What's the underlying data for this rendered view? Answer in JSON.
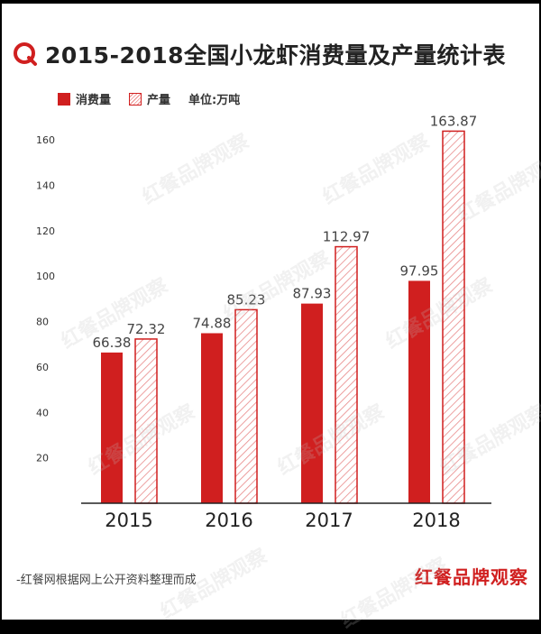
{
  "title": "2015-2018全国小龙虾消费量及产量统计表",
  "legend": {
    "consumption": "消费量",
    "production": "产量",
    "unit": "单位:万吨"
  },
  "footer": "-红餐网根据网上公开资料整理而成",
  "brand": "红餐品牌观察",
  "watermark": "红餐品牌观察",
  "colors": {
    "accent": "#d01f1f",
    "hatch": "#e88888",
    "axis": "#222222"
  },
  "chart_data": {
    "type": "bar",
    "categories": [
      "2015",
      "2016",
      "2017",
      "2018"
    ],
    "series": [
      {
        "name": "消费量",
        "values": [
          66.38,
          74.88,
          87.93,
          97.95
        ]
      },
      {
        "name": "产量",
        "values": [
          72.32,
          85.23,
          112.97,
          163.87
        ]
      }
    ],
    "yticks": [
      20,
      40,
      60,
      80,
      100,
      120,
      140,
      160
    ],
    "ylim": [
      0,
      170
    ],
    "grid": false,
    "legend_position": "top-left"
  }
}
